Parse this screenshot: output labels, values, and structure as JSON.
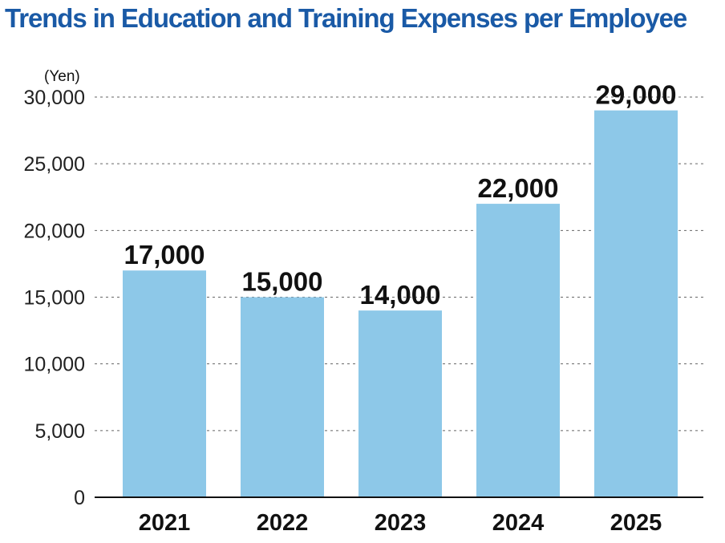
{
  "colors": {
    "title": "#1a5aa6",
    "bar": "#8dc8e8",
    "grid": "#666666",
    "axis": "#111111"
  },
  "chart_data": {
    "type": "bar",
    "title": "Trends in Education and Training Expenses per Employee",
    "ylabel": "(Yen)",
    "xlabel": "",
    "categories": [
      "2021",
      "2022",
      "2023",
      "2024",
      "2025"
    ],
    "values": [
      17000,
      15000,
      14000,
      22000,
      29000
    ],
    "value_labels": [
      "17,000",
      "15,000",
      "14,000",
      "22,000",
      "29,000"
    ],
    "ylim": [
      0,
      30000
    ],
    "yticks": [
      0,
      5000,
      10000,
      15000,
      20000,
      25000,
      30000
    ],
    "ytick_labels": [
      "0",
      "5,000",
      "10,000",
      "15,000",
      "20,000",
      "25,000",
      "30,000"
    ],
    "grid": true,
    "legend": "none"
  }
}
